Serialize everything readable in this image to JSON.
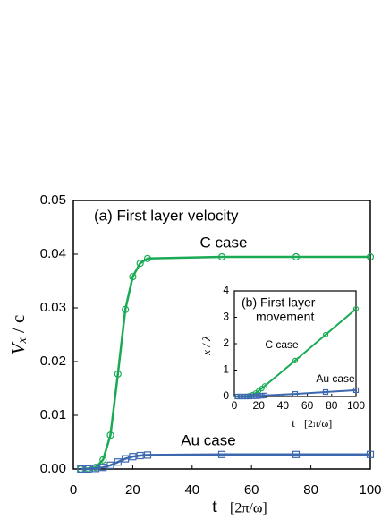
{
  "chart_data": [
    {
      "type": "line",
      "title": "(a) First layer velocity",
      "ylabel": [
        "V",
        "x",
        " / c"
      ],
      "xlabel": [
        "t",
        "[2π/ω]"
      ],
      "annotations": [
        "C case",
        "Au case"
      ],
      "xlim": [
        0,
        100
      ],
      "xticks": [
        0,
        20,
        40,
        60,
        80,
        100
      ],
      "ylim": [
        0,
        0.05
      ],
      "yticks": [
        {
          "value": 0,
          "label": "0.00"
        },
        {
          "value": 0.01,
          "label": "0.01"
        },
        {
          "value": 0.02,
          "label": "0.02"
        },
        {
          "value": 0.03,
          "label": "0.03"
        },
        {
          "value": 0.04,
          "label": "0.04"
        },
        {
          "value": 0.05,
          "label": "0.05"
        }
      ],
      "x": [
        2.5,
        5,
        7.5,
        10,
        12.5,
        15,
        17.5,
        20,
        22.5,
        25,
        50,
        75,
        100
      ],
      "series": [
        {
          "name": "C case",
          "color": "#1aaa55",
          "marker": "circle",
          "values": [
            0,
            0.0001,
            0.0003,
            0.0017,
            0.0063,
            0.0177,
            0.0297,
            0.0358,
            0.0383,
            0.0392,
            0.0395,
            0.0395,
            0.0395
          ]
        },
        {
          "name": "Au case",
          "color": "#3d68b0",
          "marker": "square",
          "values": [
            0,
            0,
            0.0001,
            0.0003,
            0.0007,
            0.0013,
            0.0019,
            0.0023,
            0.0025,
            0.0026,
            0.0027,
            0.0027,
            0.0027
          ]
        }
      ]
    },
    {
      "type": "line",
      "title": [
        "(b)  First layer",
        "movement"
      ],
      "ylabel": [
        "x / λ"
      ],
      "xlabel": [
        "t",
        "[2π/ω]"
      ],
      "annotations": [
        "C case",
        "Au case"
      ],
      "xlim": [
        0,
        100
      ],
      "xticks": [
        0,
        20,
        40,
        60,
        80,
        100
      ],
      "ylim": [
        0,
        4
      ],
      "yticks": [
        0,
        1,
        2,
        3,
        4
      ],
      "x": [
        2.5,
        5,
        7.5,
        10,
        12.5,
        15,
        17.5,
        20,
        22.5,
        25,
        50,
        75,
        100
      ],
      "series": [
        {
          "name": "C case",
          "color": "#1aaa55",
          "marker": "circle",
          "values": [
            0,
            0,
            0,
            0.01,
            0.03,
            0.07,
            0.13,
            0.22,
            0.3,
            0.4,
            1.36,
            2.34,
            3.32
          ]
        },
        {
          "name": "Au case",
          "color": "#3d68b0",
          "marker": "square",
          "values": [
            0,
            0,
            0,
            0,
            0,
            0.01,
            0.01,
            0.02,
            0.03,
            0.04,
            0.1,
            0.17,
            0.24
          ]
        }
      ]
    }
  ]
}
